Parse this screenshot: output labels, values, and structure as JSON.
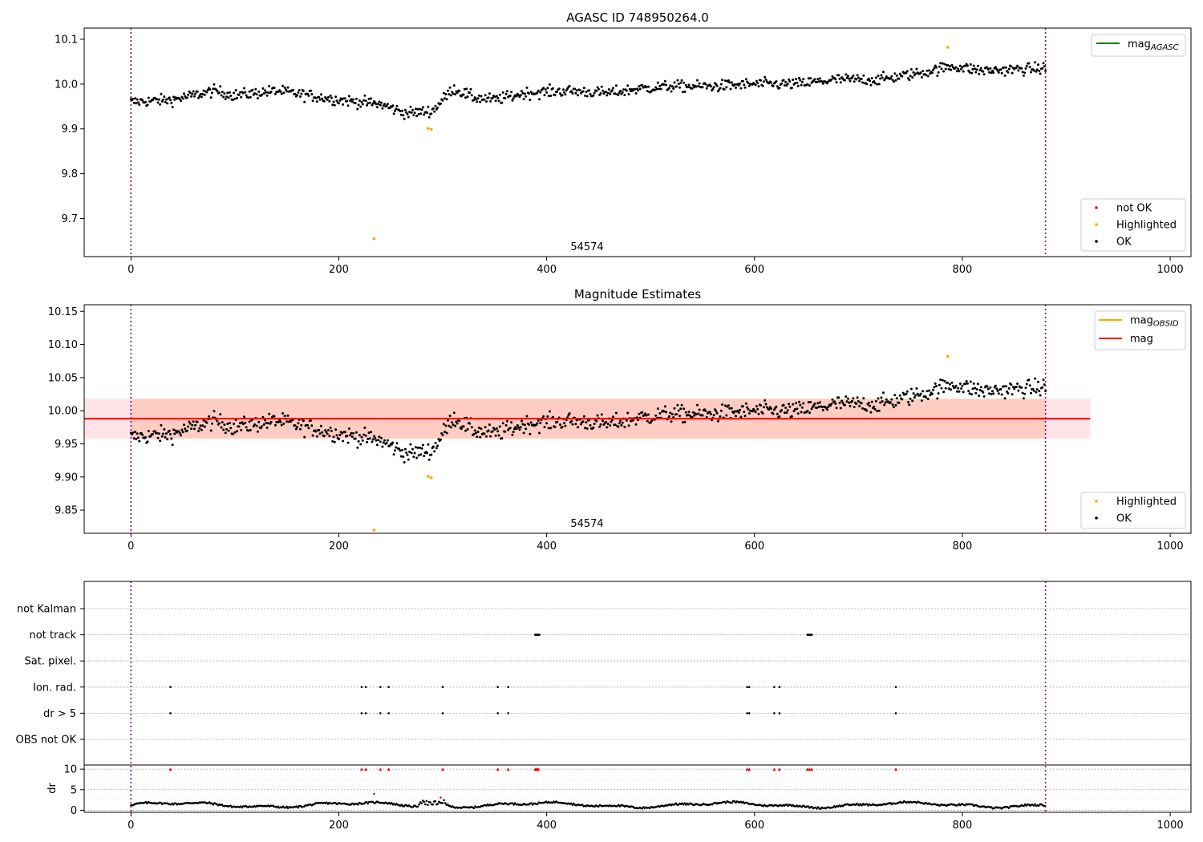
{
  "chart_data": [
    {
      "type": "scatter",
      "title": "AGASC ID 748950264.0",
      "xlim": [
        -45,
        1020
      ],
      "ylim": [
        9.615,
        10.125
      ],
      "xticks": [
        0,
        200,
        400,
        600,
        800,
        1000
      ],
      "yticks": [
        9.7,
        9.8,
        9.9,
        10.0,
        10.1
      ],
      "ytick_labels": [
        "9.7",
        "9.8",
        "9.9",
        "10.0",
        "10.1"
      ],
      "vlines": [
        0,
        880
      ],
      "annotation": {
        "text": "54574",
        "x": 440,
        "y": 9.63
      },
      "legend_lines": {
        "placement": "top-right",
        "entries": [
          {
            "label": "mag",
            "sub": "AGASC",
            "color": "#008000"
          }
        ]
      },
      "legend_points": {
        "placement": "bottom-right",
        "entries": [
          {
            "label": "not OK",
            "color": "#ff0000"
          },
          {
            "label": "Highlighted",
            "color": "#ffa500"
          },
          {
            "label": "OK",
            "color": "#000000"
          }
        ]
      },
      "trend": [
        [
          0,
          9.96
        ],
        [
          40,
          9.965
        ],
        [
          80,
          9.985
        ],
        [
          100,
          9.975
        ],
        [
          140,
          9.985
        ],
        [
          200,
          9.965
        ],
        [
          240,
          9.955
        ],
        [
          265,
          9.935
        ],
        [
          290,
          9.94
        ],
        [
          310,
          9.99
        ],
        [
          330,
          9.97
        ],
        [
          350,
          9.965
        ],
        [
          380,
          9.98
        ],
        [
          420,
          9.985
        ],
        [
          460,
          9.98
        ],
        [
          490,
          9.99
        ],
        [
          520,
          9.995
        ],
        [
          560,
          9.995
        ],
        [
          600,
          10.0
        ],
        [
          640,
          10.0
        ],
        [
          680,
          10.01
        ],
        [
          720,
          10.01
        ],
        [
          760,
          10.025
        ],
        [
          790,
          10.04
        ],
        [
          820,
          10.03
        ],
        [
          880,
          10.035
        ]
      ],
      "noise": 0.012,
      "highlighted": [
        [
          234,
          9.655
        ],
        [
          286,
          9.901
        ],
        [
          289,
          9.899
        ],
        [
          786,
          10.082
        ]
      ],
      "not_ok": []
    },
    {
      "type": "scatter",
      "title": "Magnitude Estimates",
      "xlim": [
        -45,
        1020
      ],
      "ylim": [
        9.815,
        10.16
      ],
      "xticks": [
        0,
        200,
        400,
        600,
        800,
        1000
      ],
      "yticks": [
        9.85,
        9.9,
        9.95,
        10.0,
        10.05,
        10.1,
        10.15
      ],
      "ytick_labels": [
        "9.85",
        "9.90",
        "9.95",
        "10.00",
        "10.05",
        "10.10",
        "10.15"
      ],
      "vlines": [
        0,
        880
      ],
      "annotation": {
        "text": "54574",
        "x": 440,
        "y": 9.825
      },
      "mag": {
        "value": 9.988,
        "x_range": [
          -45,
          923
        ],
        "color": "#ff0000"
      },
      "band_pink": {
        "y_range": [
          9.958,
          10.018
        ],
        "x_range": [
          -45,
          923
        ],
        "color": "#ffc0cb"
      },
      "band_orange": {
        "y_range": [
          9.958,
          10.018
        ],
        "x_range": [
          0,
          880
        ],
        "color": "#ffa07a"
      },
      "legend_lines": {
        "placement": "top-right",
        "entries": [
          {
            "label": "mag",
            "sub": "OBSID",
            "color": "#ffa500"
          },
          {
            "label": "mag",
            "sub": "",
            "color": "#ff0000"
          }
        ]
      },
      "legend_points": {
        "placement": "bottom-right",
        "entries": [
          {
            "label": "Highlighted",
            "color": "#ffa500"
          },
          {
            "label": "OK",
            "color": "#000000"
          }
        ]
      },
      "trend_ref": 0,
      "highlighted": [
        [
          234,
          9.82
        ],
        [
          286,
          9.901
        ],
        [
          289,
          9.899
        ],
        [
          786,
          10.082
        ]
      ]
    },
    {
      "type": "scatter",
      "title": "",
      "xlim": [
        -45,
        1020
      ],
      "xticks": [
        0,
        200,
        400,
        600,
        800,
        1000
      ],
      "vlines": [
        0,
        880
      ],
      "flag_rows": [
        "not Kalman",
        "not track",
        "Sat. pixel.",
        "Ion. rad.",
        "dr > 5",
        "OBS not OK"
      ],
      "flags": {
        "not track": [
          389,
          390,
          391,
          392,
          393,
          651,
          652,
          653,
          654,
          655
        ],
        "Ion. rad.": [
          38,
          222,
          226,
          240,
          248,
          300,
          353,
          363,
          593,
          595,
          619,
          624,
          736
        ],
        "dr > 5": [
          38,
          222,
          226,
          240,
          248,
          300,
          353,
          363,
          593,
          595,
          619,
          624,
          736
        ]
      },
      "dr": {
        "ylabel": "dr",
        "ylim": [
          -0.5,
          11
        ],
        "yticks": [
          0,
          5,
          10
        ],
        "ytick_labels": [
          "0",
          "5",
          "10"
        ],
        "clipped_x": [
          38,
          222,
          226,
          240,
          248,
          300,
          353,
          363,
          389,
          390,
          391,
          392,
          593,
          595,
          619,
          624,
          651,
          653,
          655,
          736
        ],
        "clipped_value": 10,
        "red_points": [
          [
            234,
            4.0
          ],
          [
            298,
            3.1
          ]
        ],
        "base": 1.3
      }
    }
  ]
}
